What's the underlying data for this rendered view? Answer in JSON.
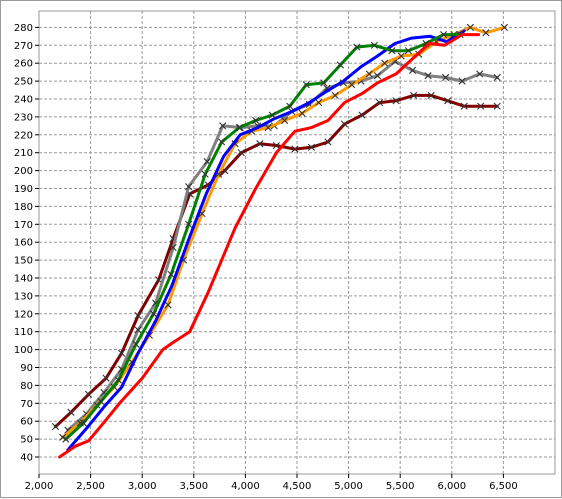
{
  "chart_data": {
    "type": "line",
    "title": "",
    "xlabel": "",
    "ylabel": "",
    "xlim": [
      2000,
      7000
    ],
    "ylim": [
      35,
      285
    ],
    "grid": true,
    "x_ticks": [
      "2,000",
      "2,500",
      "3,000",
      "3,500",
      "4,000",
      "4,500",
      "5,000",
      "5,500",
      "6,000",
      "6,500"
    ],
    "y_ticks": [
      "40",
      "50",
      "60",
      "70",
      "80",
      "90",
      "100",
      "110",
      "120",
      "130",
      "140",
      "150",
      "160",
      "170",
      "180",
      "190",
      "200",
      "210",
      "220",
      "230",
      "240",
      "250",
      "260",
      "270",
      "280"
    ],
    "series": [
      {
        "color": "#800000",
        "marker": "x",
        "points": [
          [
            2160,
            57
          ],
          [
            2310,
            65
          ],
          [
            2480,
            75
          ],
          [
            2650,
            84
          ],
          [
            2800,
            98
          ],
          [
            2960,
            119
          ],
          [
            3160,
            139
          ],
          [
            3300,
            162
          ],
          [
            3460,
            187
          ],
          [
            3640,
            192
          ],
          [
            3800,
            200
          ],
          [
            3960,
            210
          ],
          [
            4140,
            215
          ],
          [
            4300,
            214
          ],
          [
            4480,
            212
          ],
          [
            4640,
            213
          ],
          [
            4800,
            216
          ],
          [
            4960,
            226
          ],
          [
            5130,
            231
          ],
          [
            5300,
            238
          ],
          [
            5460,
            239
          ],
          [
            5630,
            242
          ],
          [
            5800,
            242
          ],
          [
            5960,
            239
          ],
          [
            6120,
            236
          ],
          [
            6280,
            236
          ],
          [
            6440,
            236
          ]
        ]
      },
      {
        "color": "#808080",
        "marker": "x",
        "points": [
          [
            2280,
            55
          ],
          [
            2460,
            64
          ],
          [
            2630,
            76
          ],
          [
            2800,
            89
          ],
          [
            2960,
            111
          ],
          [
            3130,
            126
          ],
          [
            3300,
            157
          ],
          [
            3450,
            191
          ],
          [
            3630,
            205
          ],
          [
            3780,
            225
          ],
          [
            3950,
            224
          ],
          [
            4120,
            225
          ],
          [
            4280,
            225
          ],
          [
            4450,
            233
          ],
          [
            4620,
            237
          ],
          [
            4790,
            246
          ],
          [
            4950,
            249
          ],
          [
            5120,
            250
          ],
          [
            5280,
            253
          ],
          [
            5450,
            261
          ],
          [
            5620,
            256
          ],
          [
            5770,
            253
          ],
          [
            5940,
            252
          ],
          [
            6100,
            250
          ],
          [
            6270,
            254
          ],
          [
            6440,
            252
          ]
        ]
      },
      {
        "color": "#ff9900",
        "marker": "x",
        "points": [
          [
            2230,
            51
          ],
          [
            2400,
            59
          ],
          [
            2560,
            69
          ],
          [
            2730,
            79
          ],
          [
            2900,
            93
          ],
          [
            3070,
            108
          ],
          [
            3250,
            125
          ],
          [
            3400,
            150
          ],
          [
            3580,
            176
          ],
          [
            3740,
            198
          ],
          [
            3900,
            215
          ],
          [
            4060,
            222
          ],
          [
            4220,
            224
          ],
          [
            4380,
            228
          ],
          [
            4550,
            232
          ],
          [
            4710,
            238
          ],
          [
            4870,
            242
          ],
          [
            5030,
            248
          ],
          [
            5200,
            254
          ],
          [
            5350,
            260
          ],
          [
            5510,
            264
          ],
          [
            5680,
            265
          ],
          [
            5850,
            272
          ],
          [
            6020,
            276
          ],
          [
            6180,
            280
          ],
          [
            6330,
            277
          ],
          [
            6510,
            280
          ]
        ]
      },
      {
        "color": "#0000ff",
        "marker": "none",
        "points": [
          [
            2280,
            44
          ],
          [
            2460,
            56
          ],
          [
            2630,
            68
          ],
          [
            2800,
            79
          ],
          [
            2960,
            98
          ],
          [
            3130,
            116
          ],
          [
            3290,
            136
          ],
          [
            3460,
            163
          ],
          [
            3620,
            187
          ],
          [
            3790,
            208
          ],
          [
            3950,
            220
          ],
          [
            4120,
            224
          ],
          [
            4280,
            229
          ],
          [
            4450,
            233
          ],
          [
            4620,
            238
          ],
          [
            4780,
            244
          ],
          [
            4950,
            250
          ],
          [
            5120,
            258
          ],
          [
            5280,
            264
          ],
          [
            5450,
            271
          ],
          [
            5610,
            274
          ],
          [
            5790,
            275
          ],
          [
            5950,
            272
          ],
          [
            6120,
            278
          ]
        ]
      },
      {
        "color": "#008000",
        "marker": "x",
        "points": [
          [
            2260,
            50
          ],
          [
            2430,
            59
          ],
          [
            2600,
            71
          ],
          [
            2770,
            83
          ],
          [
            2940,
            103
          ],
          [
            3110,
            120
          ],
          [
            3280,
            142
          ],
          [
            3450,
            170
          ],
          [
            3610,
            198
          ],
          [
            3770,
            216
          ],
          [
            3940,
            224
          ],
          [
            4100,
            228
          ],
          [
            4260,
            231
          ],
          [
            4430,
            236
          ],
          [
            4590,
            248
          ],
          [
            4760,
            249
          ],
          [
            4920,
            259
          ],
          [
            5080,
            269
          ],
          [
            5250,
            270
          ],
          [
            5420,
            267
          ],
          [
            5580,
            267
          ],
          [
            5750,
            271
          ],
          [
            5920,
            276
          ],
          [
            6080,
            276
          ]
        ]
      },
      {
        "color": "#ff0000",
        "marker": "none",
        "points": [
          [
            2200,
            40
          ],
          [
            2350,
            46
          ],
          [
            2480,
            49
          ],
          [
            2640,
            60
          ],
          [
            2780,
            70
          ],
          [
            3000,
            84
          ],
          [
            3200,
            100
          ],
          [
            3300,
            104
          ],
          [
            3460,
            110
          ],
          [
            3640,
            132
          ],
          [
            3900,
            168
          ],
          [
            4100,
            190
          ],
          [
            4300,
            210
          ],
          [
            4480,
            222
          ],
          [
            4640,
            224
          ],
          [
            4800,
            228
          ],
          [
            4960,
            238
          ],
          [
            5130,
            243
          ],
          [
            5280,
            249
          ],
          [
            5460,
            254
          ],
          [
            5610,
            262
          ],
          [
            5780,
            271
          ],
          [
            5930,
            270
          ],
          [
            6100,
            276
          ],
          [
            6260,
            276
          ]
        ]
      }
    ]
  }
}
